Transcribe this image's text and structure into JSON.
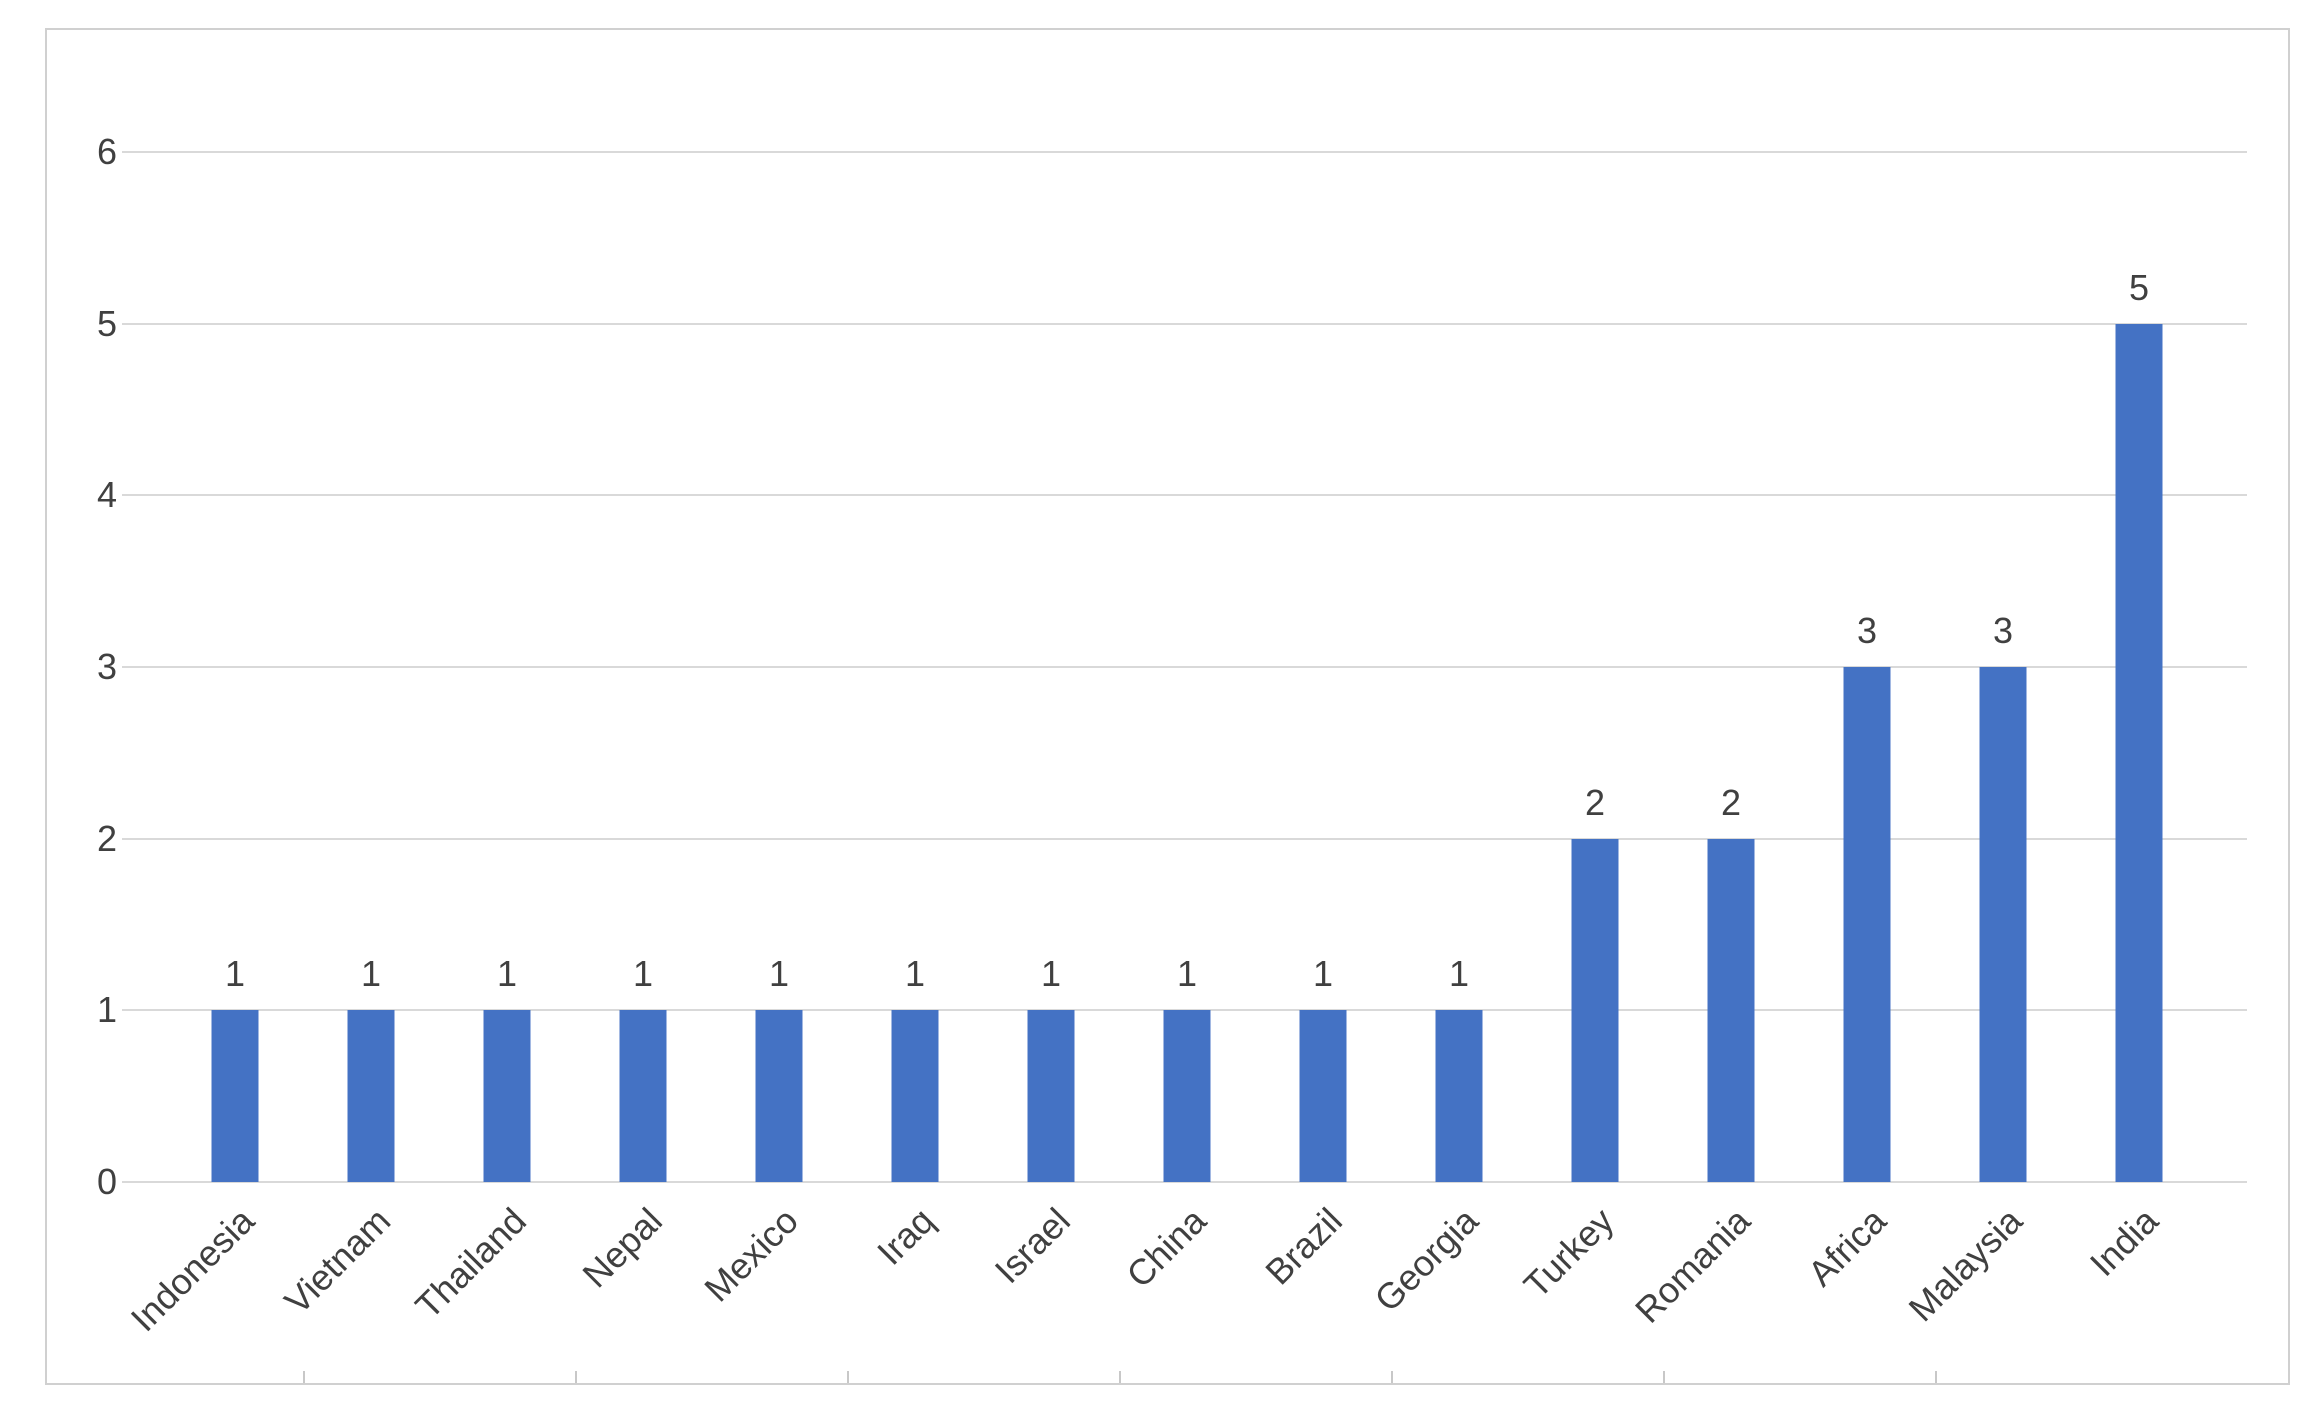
{
  "chart_data": {
    "type": "bar",
    "categories": [
      "Indonesia",
      "Vietnam",
      "Thailand",
      "Nepal",
      "Mexico",
      "Iraq",
      "Israel",
      "China",
      "Brazil",
      "Georgia",
      "Turkey",
      "Romania",
      "Africa",
      "Malaysia",
      "India"
    ],
    "values": [
      1,
      1,
      1,
      1,
      1,
      1,
      1,
      1,
      1,
      1,
      2,
      2,
      3,
      3,
      5
    ],
    "xlabel": "",
    "ylabel": "",
    "ylim": [
      0,
      6
    ],
    "y_ticks": [
      0,
      1,
      2,
      3,
      4,
      5,
      6
    ],
    "grid": true,
    "legend": "none",
    "data_labels": true,
    "bar_color": "#4472C4",
    "gridline_color": "#d9d9d9",
    "axis_text_color": "#404040",
    "frame_border_color": "#d0d0d0"
  }
}
